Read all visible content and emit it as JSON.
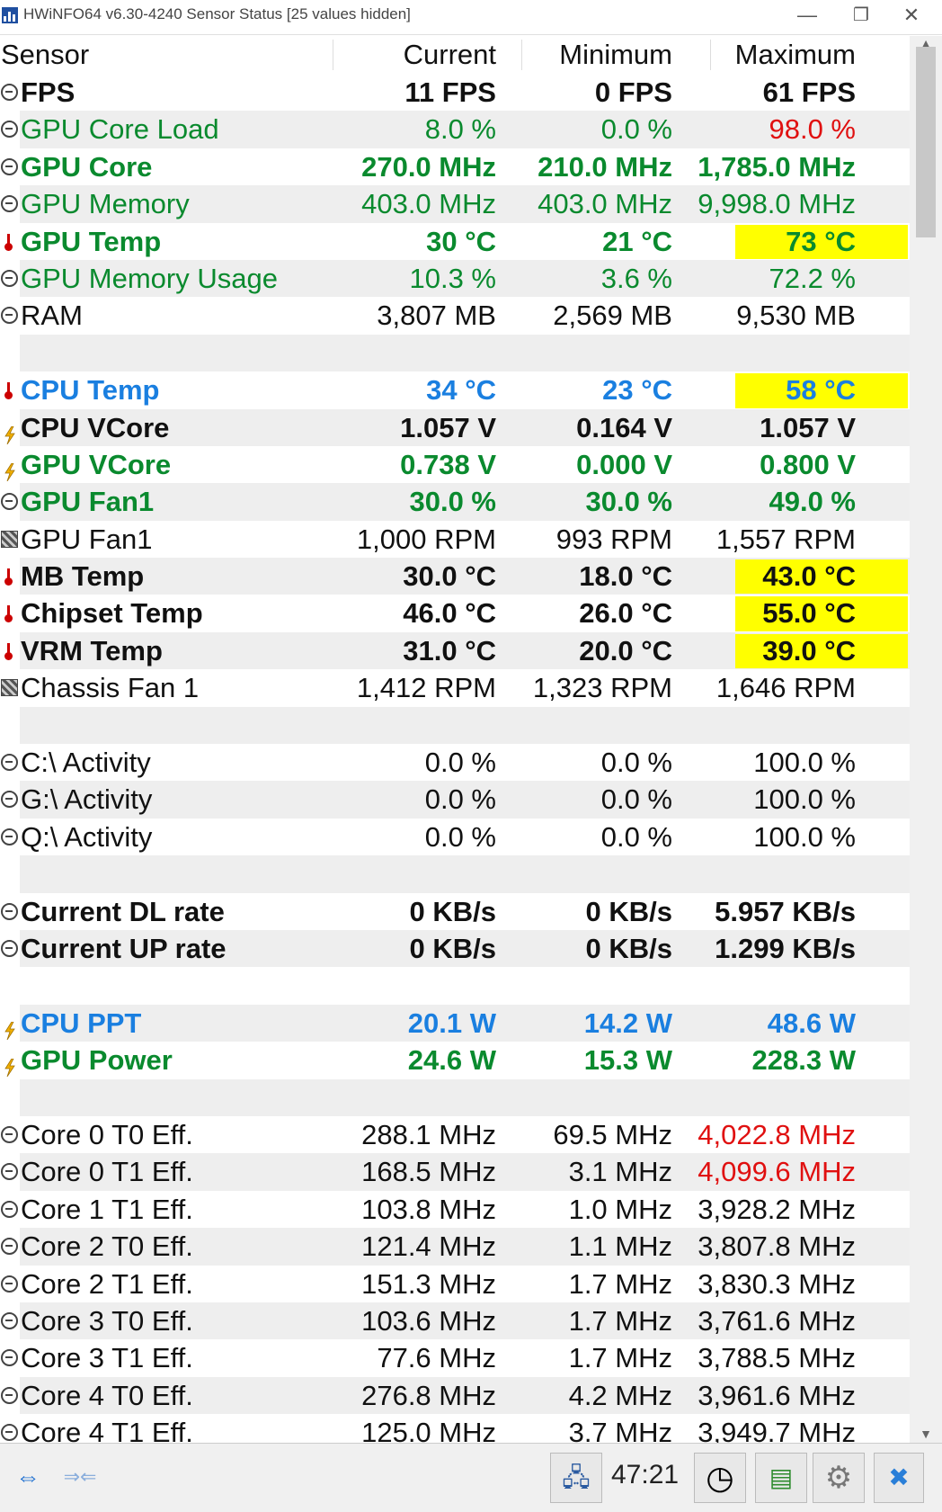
{
  "window": {
    "title": "HWiNFO64 v6.30-4240 Sensor Status [25 values hidden]",
    "minimize_glyph": "—",
    "restore_glyph": "❐",
    "close_glyph": "✕"
  },
  "header": {
    "sensor": "Sensor",
    "current": "Current",
    "minimum": "Minimum",
    "maximum": "Maximum"
  },
  "colors": {
    "green": "#0a8a2e",
    "blue": "#1a7fe0",
    "red": "#e01010",
    "black": "#111111",
    "highlight": "#ffff00",
    "stripe": "#eeeeee"
  },
  "rows": [
    {
      "icon": "clock",
      "label": "FPS",
      "current": "11 FPS",
      "minimum": "0 FPS",
      "maximum": "61 FPS",
      "bold": true,
      "color": "black"
    },
    {
      "icon": "clock",
      "label": "GPU Core Load",
      "current": "8.0 %",
      "minimum": "0.0 %",
      "maximum": "98.0 %",
      "bold": false,
      "color": "green",
      "max_color": "red"
    },
    {
      "icon": "clock",
      "label": "GPU Core",
      "current": "270.0 MHz",
      "minimum": "210.0 MHz",
      "maximum": "1,785.0 MHz",
      "bold": true,
      "color": "green"
    },
    {
      "icon": "clock",
      "label": "GPU Memory",
      "current": "403.0 MHz",
      "minimum": "403.0 MHz",
      "maximum": "9,998.0 MHz",
      "bold": false,
      "color": "green"
    },
    {
      "icon": "therm",
      "label": "GPU Temp",
      "current": "30 °C",
      "minimum": "21 °C",
      "maximum": "73 °C",
      "bold": true,
      "color": "green",
      "highlight": true
    },
    {
      "icon": "clock",
      "label": "GPU Memory Usage",
      "current": "10.3 %",
      "minimum": "3.6 %",
      "maximum": "72.2 %",
      "bold": false,
      "color": "green"
    },
    {
      "icon": "clock",
      "label": "RAM",
      "current": "3,807 MB",
      "minimum": "2,569 MB",
      "maximum": "9,530 MB",
      "bold": false,
      "color": "black"
    },
    {
      "icon": "",
      "label": "",
      "current": "",
      "minimum": "",
      "maximum": ""
    },
    {
      "icon": "therm",
      "label": "CPU Temp",
      "current": "34 °C",
      "minimum": "23 °C",
      "maximum": "58 °C",
      "bold": true,
      "color": "blue",
      "highlight": true
    },
    {
      "icon": "bolt",
      "label": "CPU VCore",
      "current": "1.057 V",
      "minimum": "0.164 V",
      "maximum": "1.057 V",
      "bold": true,
      "color": "black"
    },
    {
      "icon": "bolt",
      "label": "GPU VCore",
      "current": "0.738 V",
      "minimum": "0.000 V",
      "maximum": "0.800 V",
      "bold": true,
      "color": "green"
    },
    {
      "icon": "clock",
      "label": "GPU Fan1",
      "current": "30.0 %",
      "minimum": "30.0 %",
      "maximum": "49.0 %",
      "bold": true,
      "color": "green"
    },
    {
      "icon": "fan",
      "label": "GPU Fan1",
      "current": "1,000 RPM",
      "minimum": "993 RPM",
      "maximum": "1,557 RPM",
      "bold": false,
      "color": "black"
    },
    {
      "icon": "therm",
      "label": "MB Temp",
      "current": "30.0 °C",
      "minimum": "18.0 °C",
      "maximum": "43.0 °C",
      "bold": true,
      "color": "black",
      "highlight": true
    },
    {
      "icon": "therm",
      "label": "Chipset Temp",
      "current": "46.0 °C",
      "minimum": "26.0 °C",
      "maximum": "55.0 °C",
      "bold": true,
      "color": "black",
      "highlight": true
    },
    {
      "icon": "therm",
      "label": "VRM Temp",
      "current": "31.0 °C",
      "minimum": "20.0 °C",
      "maximum": "39.0 °C",
      "bold": true,
      "color": "black",
      "highlight": true
    },
    {
      "icon": "fan",
      "label": "Chassis Fan 1",
      "current": "1,412 RPM",
      "minimum": "1,323 RPM",
      "maximum": "1,646 RPM",
      "bold": false,
      "color": "black"
    },
    {
      "icon": "",
      "label": "",
      "current": "",
      "minimum": "",
      "maximum": ""
    },
    {
      "icon": "clock",
      "label": "C:\\ Activity",
      "current": "0.0 %",
      "minimum": "0.0 %",
      "maximum": "100.0 %",
      "bold": false,
      "color": "black"
    },
    {
      "icon": "clock",
      "label": "G:\\ Activity",
      "current": "0.0 %",
      "minimum": "0.0 %",
      "maximum": "100.0 %",
      "bold": false,
      "color": "black"
    },
    {
      "icon": "clock",
      "label": "Q:\\ Activity",
      "current": "0.0 %",
      "minimum": "0.0 %",
      "maximum": "100.0 %",
      "bold": false,
      "color": "black"
    },
    {
      "icon": "",
      "label": "",
      "current": "",
      "minimum": "",
      "maximum": ""
    },
    {
      "icon": "clock",
      "label": "Current DL rate",
      "current": "0 KB/s",
      "minimum": "0 KB/s",
      "maximum": "5.957 KB/s",
      "bold": true,
      "color": "black"
    },
    {
      "icon": "clock",
      "label": "Current UP rate",
      "current": "0 KB/s",
      "minimum": "0 KB/s",
      "maximum": "1.299 KB/s",
      "bold": true,
      "color": "black"
    },
    {
      "icon": "",
      "label": "",
      "current": "",
      "minimum": "",
      "maximum": ""
    },
    {
      "icon": "bolt",
      "label": "CPU PPT",
      "current": "20.1 W",
      "minimum": "14.2 W",
      "maximum": "48.6 W",
      "bold": true,
      "color": "blue"
    },
    {
      "icon": "bolt",
      "label": "GPU Power",
      "current": "24.6 W",
      "minimum": "15.3 W",
      "maximum": "228.3 W",
      "bold": true,
      "color": "green"
    },
    {
      "icon": "",
      "label": "",
      "current": "",
      "minimum": "",
      "maximum": ""
    },
    {
      "icon": "clock",
      "label": "Core 0 T0 Eff.",
      "current": "288.1 MHz",
      "minimum": "69.5 MHz",
      "maximum": "4,022.8 MHz",
      "bold": false,
      "color": "black",
      "max_color": "red"
    },
    {
      "icon": "clock",
      "label": "Core 0 T1 Eff.",
      "current": "168.5 MHz",
      "minimum": "3.1 MHz",
      "maximum": "4,099.6 MHz",
      "bold": false,
      "color": "black",
      "max_color": "red"
    },
    {
      "icon": "clock",
      "label": "Core 1 T1 Eff.",
      "current": "103.8 MHz",
      "minimum": "1.0 MHz",
      "maximum": "3,928.2 MHz",
      "bold": false,
      "color": "black"
    },
    {
      "icon": "clock",
      "label": "Core 2 T0 Eff.",
      "current": "121.4 MHz",
      "minimum": "1.1 MHz",
      "maximum": "3,807.8 MHz",
      "bold": false,
      "color": "black"
    },
    {
      "icon": "clock",
      "label": "Core 2 T1 Eff.",
      "current": "151.3 MHz",
      "minimum": "1.7 MHz",
      "maximum": "3,830.3 MHz",
      "bold": false,
      "color": "black"
    },
    {
      "icon": "clock",
      "label": "Core 3 T0 Eff.",
      "current": "103.6 MHz",
      "minimum": "1.7 MHz",
      "maximum": "3,761.6 MHz",
      "bold": false,
      "color": "black"
    },
    {
      "icon": "clock",
      "label": "Core 3 T1 Eff.",
      "current": "77.6 MHz",
      "minimum": "1.7 MHz",
      "maximum": "3,788.5 MHz",
      "bold": false,
      "color": "black"
    },
    {
      "icon": "clock",
      "label": "Core 4 T0 Eff.",
      "current": "276.8 MHz",
      "minimum": "4.2 MHz",
      "maximum": "3,961.6 MHz",
      "bold": false,
      "color": "black"
    },
    {
      "icon": "clock",
      "label": "Core 4 T1 Eff.",
      "current": "125.0 MHz",
      "minimum": "3.7 MHz",
      "maximum": "3,949.7 MHz",
      "bold": false,
      "color": "black"
    }
  ],
  "statusbar": {
    "expand_glyph": "⇔",
    "collapse_glyph": "⇒⇐",
    "network_glyph": "🖧",
    "timer": "47:21",
    "clock_glyph": "◷",
    "report_glyph": "▤",
    "settings_glyph": "⚙",
    "close_glyph": "✖"
  }
}
